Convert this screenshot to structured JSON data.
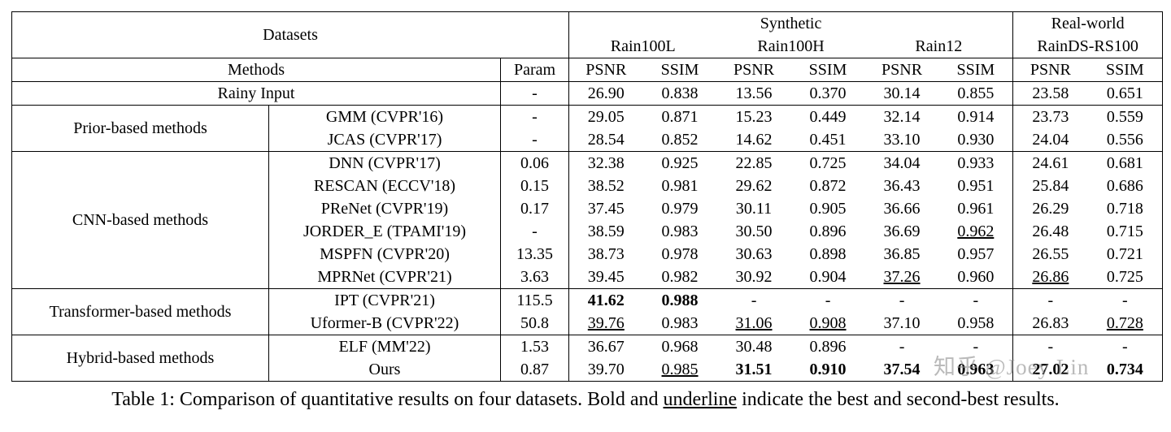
{
  "table": {
    "header": {
      "datasets_label": "Datasets",
      "methods_label": "Methods",
      "param_label": "Param",
      "synthetic_label": "Synthetic",
      "realworld_label": "Real-world",
      "synthetic_datasets": [
        "Rain100L",
        "Rain100H",
        "Rain12"
      ],
      "realworld_datasets": [
        "RainDS-RS100"
      ],
      "metrics": [
        "PSNR",
        "SSIM",
        "PSNR",
        "SSIM",
        "PSNR",
        "SSIM",
        "PSNR",
        "SSIM"
      ]
    },
    "groups": [
      {
        "group_label": "",
        "full_span": true,
        "rows": [
          {
            "method": "Rainy Input",
            "param": "-",
            "cells": [
              "26.90",
              "0.838",
              "13.56",
              "0.370",
              "30.14",
              "0.855",
              "23.58",
              "0.651"
            ]
          }
        ]
      },
      {
        "group_label": "Prior-based methods",
        "full_span": false,
        "rows": [
          {
            "method": "GMM (CVPR'16)",
            "param": "-",
            "cells": [
              "29.05",
              "0.871",
              "15.23",
              "0.449",
              "32.14",
              "0.914",
              "23.73",
              "0.559"
            ]
          },
          {
            "method": "JCAS (CVPR'17)",
            "param": "-",
            "cells": [
              "28.54",
              "0.852",
              "14.62",
              "0.451",
              "33.10",
              "0.930",
              "24.04",
              "0.556"
            ]
          }
        ]
      },
      {
        "group_label": "CNN-based methods",
        "full_span": false,
        "rows": [
          {
            "method": "DNN (CVPR'17)",
            "param": "0.06",
            "cells": [
              "32.38",
              "0.925",
              "22.85",
              "0.725",
              "34.04",
              "0.933",
              "24.61",
              "0.681"
            ]
          },
          {
            "method": "RESCAN (ECCV'18)",
            "param": "0.15",
            "cells": [
              "38.52",
              "0.981",
              "29.62",
              "0.872",
              "36.43",
              "0.951",
              "25.84",
              "0.686"
            ]
          },
          {
            "method": "PReNet (CVPR'19)",
            "param": "0.17",
            "cells": [
              "37.45",
              "0.979",
              "30.11",
              "0.905",
              "36.66",
              "0.961",
              "26.29",
              "0.718"
            ]
          },
          {
            "method": "JORDER_E (TPAMI'19)",
            "param": "-",
            "cells": [
              "38.59",
              "0.983",
              "30.50",
              "0.896",
              "36.69",
              {
                "t": "0.962",
                "style": "underline"
              },
              "26.48",
              "0.715"
            ]
          },
          {
            "method": "MSPFN (CVPR'20)",
            "param": "13.35",
            "cells": [
              "38.73",
              "0.978",
              "30.63",
              "0.898",
              "36.85",
              "0.957",
              "26.55",
              "0.721"
            ]
          },
          {
            "method": "MPRNet (CVPR'21)",
            "param": "3.63",
            "cells": [
              "39.45",
              "0.982",
              "30.92",
              "0.904",
              {
                "t": "37.26",
                "style": "underline"
              },
              "0.960",
              {
                "t": "26.86",
                "style": "underline"
              },
              "0.725"
            ]
          }
        ]
      },
      {
        "group_label": "Transformer-based methods",
        "full_span": false,
        "rows": [
          {
            "method": "IPT (CVPR'21)",
            "param": "115.5",
            "cells": [
              {
                "t": "41.62",
                "style": "bold"
              },
              {
                "t": "0.988",
                "style": "bold"
              },
              "-",
              "-",
              "-",
              "-",
              "-",
              "-"
            ]
          },
          {
            "method": "Uformer-B (CVPR'22)",
            "param": "50.8",
            "cells": [
              {
                "t": "39.76",
                "style": "underline"
              },
              "0.983",
              {
                "t": "31.06",
                "style": "underline"
              },
              {
                "t": "0.908",
                "style": "underline"
              },
              "37.10",
              "0.958",
              "26.83",
              {
                "t": "0.728",
                "style": "underline"
              }
            ]
          }
        ]
      },
      {
        "group_label": "Hybrid-based methods",
        "full_span": false,
        "rows": [
          {
            "method": "ELF (MM'22)",
            "param": "1.53",
            "cells": [
              "36.67",
              "0.968",
              "30.48",
              "0.896",
              "-",
              "-",
              "-",
              "-"
            ]
          },
          {
            "method": "Ours",
            "param": "0.87",
            "cells": [
              "39.70",
              {
                "t": "0.985",
                "style": "underline"
              },
              {
                "t": "31.51",
                "style": "bold"
              },
              {
                "t": "0.910",
                "style": "bold"
              },
              {
                "t": "37.54",
                "style": "bold"
              },
              {
                "t": "0.963",
                "style": "bold"
              },
              {
                "t": "27.02",
                "style": "bold"
              },
              {
                "t": "0.734",
                "style": "bold"
              }
            ]
          }
        ]
      }
    ]
  },
  "caption": {
    "prefix": "Table 1: Comparison of quantitative results on four datasets. Bold and ",
    "underlined_word": "underline",
    "suffix": " indicate the best and second-best results."
  },
  "watermark": "知乎 @Joey Lin"
}
